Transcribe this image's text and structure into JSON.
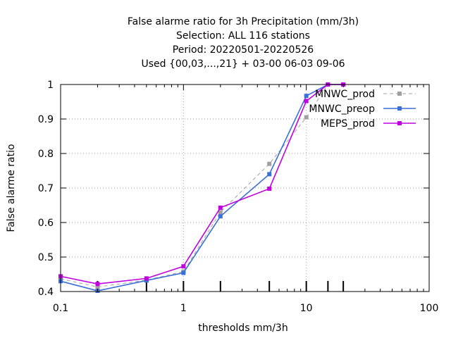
{
  "chart_data": {
    "type": "line",
    "title_lines": [
      "False alarme ratio  for 3h Precipitation (mm/3h)",
      "Selection: ALL    116 stations",
      "Period: 20220501-20220526",
      "Used {00,03,...,21} + 03-00 06-03 09-06"
    ],
    "xlabel": "thresholds mm/3h",
    "ylabel": "False alarme ratio",
    "x_scale": "log",
    "xlim": [
      0.1,
      100
    ],
    "ylim": [
      0.4,
      1.0
    ],
    "x_ticks": [
      0.1,
      1,
      10,
      100
    ],
    "x_tick_labels": [
      "0.1",
      "1",
      "10",
      "100"
    ],
    "y_ticks": [
      0.4,
      0.5,
      0.6,
      0.7,
      0.8,
      0.9,
      1.0
    ],
    "y_tick_labels": [
      "0.4",
      "0.5",
      "0.6",
      "0.7",
      "0.8",
      "0.9",
      "1"
    ],
    "grid": true,
    "legend_position": "top-right",
    "threshold_markers": [
      0.2,
      0.5,
      1,
      2,
      5,
      10,
      15,
      20
    ],
    "series": [
      {
        "name": "MNWC_prod",
        "color": "#a0a0a0",
        "dash": true,
        "x": [
          0.1,
          0.2,
          0.5,
          1,
          2,
          5,
          10,
          15,
          20
        ],
        "y": [
          0.437,
          0.413,
          0.433,
          0.458,
          0.63,
          0.77,
          0.905,
          1.0,
          1.0
        ]
      },
      {
        "name": "MNWC_preop",
        "color": "#3a6fd8",
        "dash": false,
        "x": [
          0.1,
          0.2,
          0.5,
          1,
          2,
          5,
          10,
          15,
          20
        ],
        "y": [
          0.43,
          0.402,
          0.432,
          0.454,
          0.618,
          0.74,
          0.967,
          1.0,
          1.0
        ]
      },
      {
        "name": "MEPS_prod",
        "color": "#c000e0",
        "dash": false,
        "x": [
          0.1,
          0.2,
          0.5,
          1,
          2,
          5,
          10,
          15,
          20
        ],
        "y": [
          0.444,
          0.422,
          0.438,
          0.473,
          0.643,
          0.698,
          0.952,
          1.0,
          1.0
        ]
      }
    ]
  }
}
